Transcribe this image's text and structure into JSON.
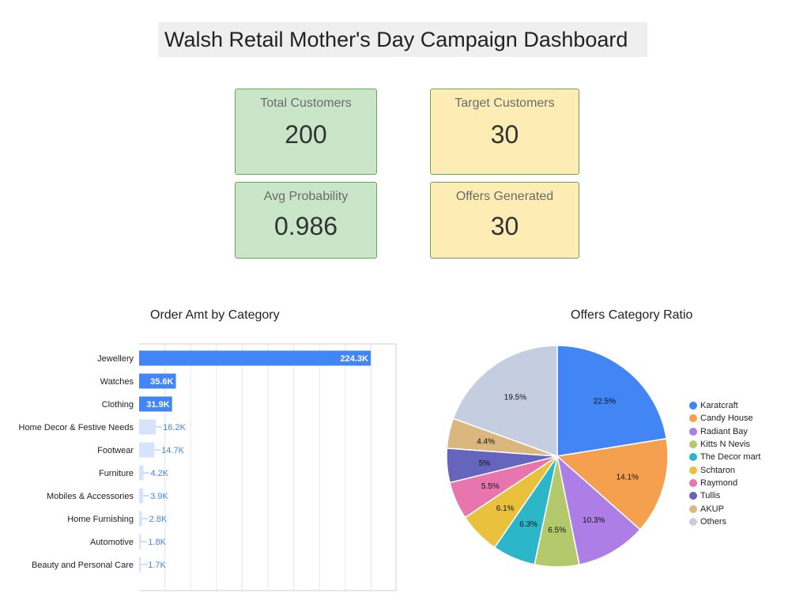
{
  "header": {
    "title": "Walsh Retail Mother's Day Campaign Dashboard"
  },
  "kpis": [
    {
      "label": "Total Customers",
      "value": "200",
      "color": "#c9e6c9"
    },
    {
      "label": "Target Customers",
      "value": "30",
      "color": "#fdedb4"
    },
    {
      "label": "Avg Probability",
      "value": "0.986",
      "color": "#c9e6c9"
    },
    {
      "label": "Offers Generated",
      "value": "30",
      "color": "#fdedb4"
    }
  ],
  "chart_data": [
    {
      "type": "bar",
      "orientation": "horizontal",
      "title": "Order Amt by Category",
      "categories": [
        "Jewellery",
        "Watches",
        "Clothing",
        "Home Decor & Festive Needs",
        "Footwear",
        "Furniture",
        "Mobiles & Accessories",
        "Home Furnishing",
        "Automotive",
        "Beauty and Personal Care"
      ],
      "values": [
        224300,
        35600,
        31900,
        16200,
        14700,
        4200,
        3900,
        2800,
        1800,
        1700
      ],
      "data_labels": [
        "224.3K",
        "35.6K",
        "31.9K",
        "16.2K",
        "14.7K",
        "4.2K",
        "3.9K",
        "2.8K",
        "1.8K",
        "1.7K"
      ],
      "xlim": [
        0,
        225000
      ],
      "grid": true,
      "colors": {
        "strong": "#4285f4",
        "light": "#d6e4fb",
        "label_outside": "#4285f4",
        "label_inside": "#ffffff"
      }
    },
    {
      "type": "pie",
      "title": "Offers Category Ratio",
      "legend_position": "right",
      "labels": [
        "Karatcraft",
        "Candy House",
        "Radiant Bay",
        "Kitts N Nevis",
        "The Decor mart",
        "Schtaron",
        "Raymond",
        "Tullis",
        "AKUP",
        "Others"
      ],
      "values": [
        22.5,
        14.1,
        10.3,
        6.5,
        6.3,
        6.1,
        5.5,
        5,
        4.4,
        19.5
      ],
      "data_labels": [
        "22.5%",
        "14.1%",
        "10.3%",
        "6.5%",
        "6.3%",
        "6.1%",
        "5.5%",
        "5%",
        "4.4%",
        "19.5%"
      ],
      "colors": [
        "#4285f4",
        "#f4a04f",
        "#ad7fe6",
        "#b3c96b",
        "#2bb7c9",
        "#e9c13d",
        "#e676ad",
        "#6665bd",
        "#d9b77e",
        "#c5cde0"
      ]
    }
  ]
}
